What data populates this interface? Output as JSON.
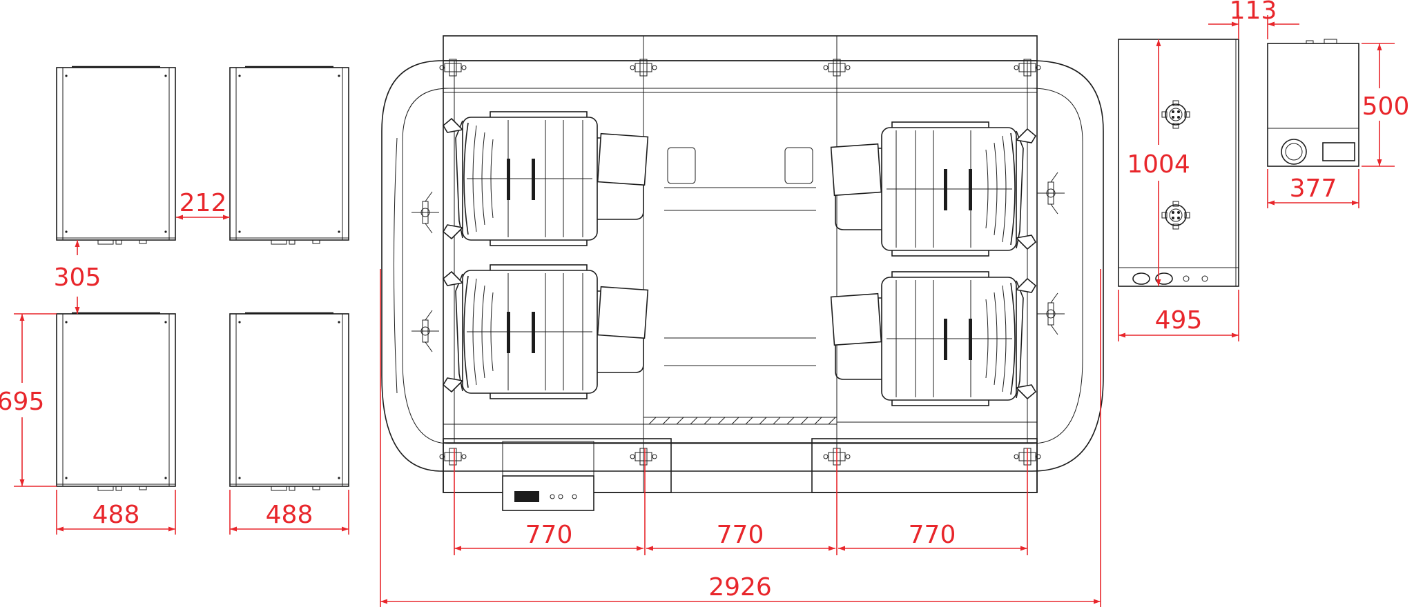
{
  "colors": {
    "line": "#1c1c1c",
    "dimension": "#e8262b",
    "background": "#ffffff"
  },
  "dimensions": {
    "cabinet_gap_h": "212",
    "cabinet_gap_v": "305",
    "cabinet_height": "695",
    "cabinet_width_left": "488",
    "cabinet_width_right": "488",
    "seat_pitch_1": "770",
    "seat_pitch_2": "770",
    "seat_pitch_3": "770",
    "overall_width": "2926",
    "panel_height": "1004",
    "panel_width": "495",
    "offset_top": "113",
    "unit_height": "500",
    "unit_width": "377"
  }
}
